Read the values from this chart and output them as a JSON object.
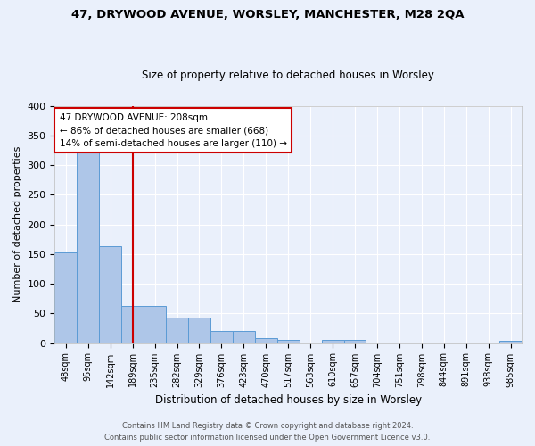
{
  "title": "47, DRYWOOD AVENUE, WORSLEY, MANCHESTER, M28 2QA",
  "subtitle": "Size of property relative to detached houses in Worsley",
  "xlabel": "Distribution of detached houses by size in Worsley",
  "ylabel": "Number of detached properties",
  "categories": [
    "48sqm",
    "95sqm",
    "142sqm",
    "189sqm",
    "235sqm",
    "282sqm",
    "329sqm",
    "376sqm",
    "423sqm",
    "470sqm",
    "517sqm",
    "563sqm",
    "610sqm",
    "657sqm",
    "704sqm",
    "751sqm",
    "798sqm",
    "844sqm",
    "891sqm",
    "938sqm",
    "985sqm"
  ],
  "values": [
    152,
    328,
    163,
    63,
    63,
    43,
    43,
    21,
    21,
    8,
    5,
    0,
    5,
    5,
    0,
    0,
    0,
    0,
    0,
    0,
    4
  ],
  "bar_color": "#aec6e8",
  "bar_edge_color": "#5b9bd5",
  "background_color": "#eaf0fb",
  "grid_color": "#ffffff",
  "red_line_x": 3.0,
  "annotation_title": "47 DRYWOOD AVENUE: 208sqm",
  "annotation_line1": "← 86% of detached houses are smaller (668)",
  "annotation_line2": "14% of semi-detached houses are larger (110) →",
  "annotation_box_color": "#ffffff",
  "annotation_box_edge": "#cc0000",
  "red_line_color": "#cc0000",
  "footer1": "Contains HM Land Registry data © Crown copyright and database right 2024.",
  "footer2": "Contains public sector information licensed under the Open Government Licence v3.0.",
  "ylim": [
    0,
    400
  ],
  "yticks": [
    0,
    50,
    100,
    150,
    200,
    250,
    300,
    350,
    400
  ]
}
